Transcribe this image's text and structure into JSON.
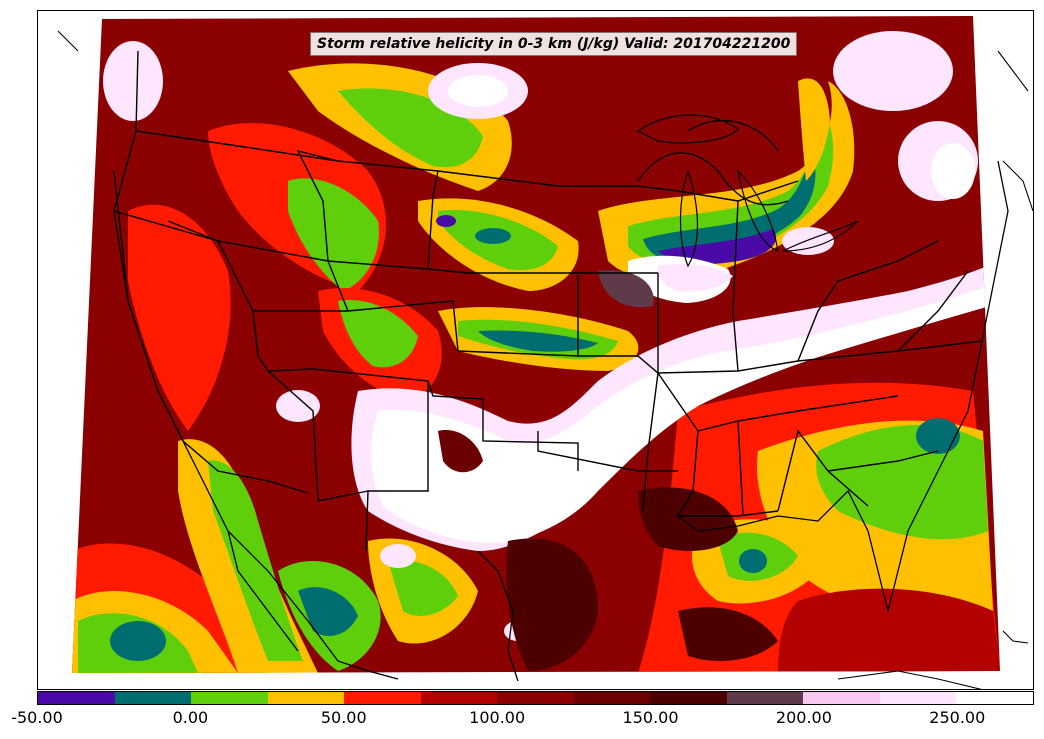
{
  "map": {
    "title": "Storm relative helicity in 0-3 km (J/kg) Valid: 201704221200",
    "variable": "Storm relative helicity",
    "layer": "0-3 km",
    "units": "J/kg",
    "valid_time": "201704221200",
    "region": "Contiguous United States and northern Mexico",
    "projection": "Lambert conformal"
  },
  "colorbar": {
    "min": -50,
    "max": 275,
    "step": 25,
    "colors": [
      "#4a0aa8",
      "#006d70",
      "#5ecf0a",
      "#ffc000",
      "#ff1a00",
      "#b30000",
      "#8b0000",
      "#6a0000",
      "#4d0000",
      "#5e3a4a",
      "#f8c8f0",
      "#ffe6ff",
      "#ffffff"
    ],
    "tick_values": [
      -50,
      0,
      50,
      100,
      150,
      200,
      250
    ],
    "tick_labels": [
      "-50.00",
      "0.00",
      "50.00",
      "100.00",
      "150.00",
      "200.00",
      "250.00"
    ]
  }
}
